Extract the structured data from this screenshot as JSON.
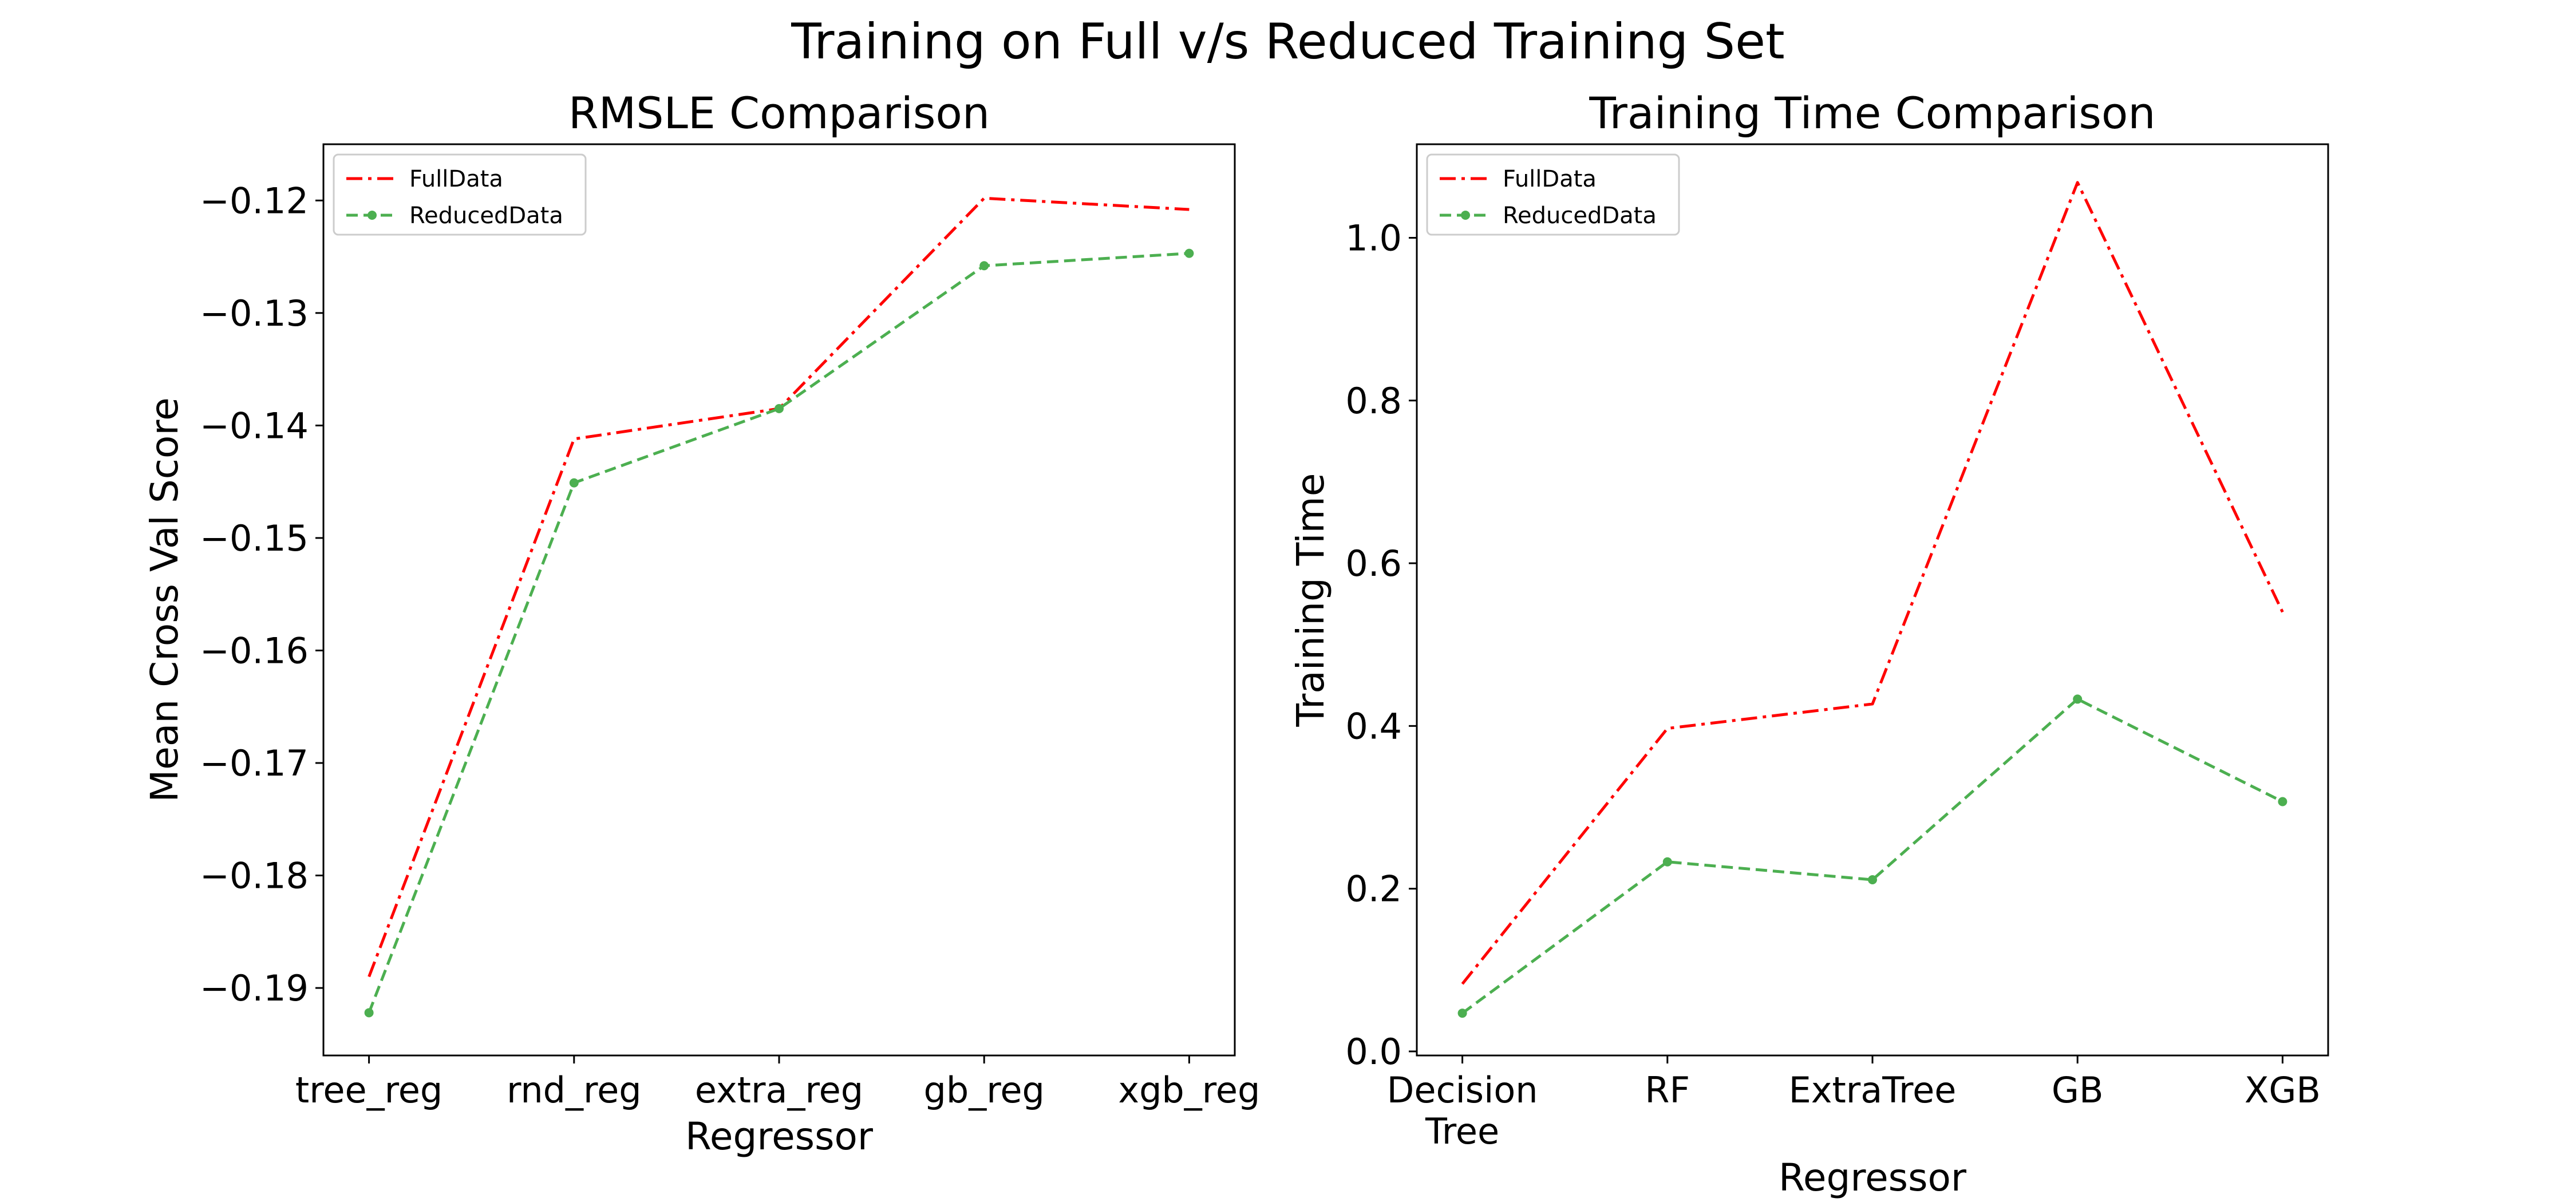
{
  "figure": {
    "suptitle": "Training on Full v/s Reduced Training Set"
  },
  "chart_data": [
    {
      "type": "line",
      "title": "RMSLE Comparison",
      "xlabel": "Regressor",
      "ylabel": "Mean Cross Val Score",
      "categories": [
        "tree_reg",
        "rnd_reg",
        "extra_reg",
        "gb_reg",
        "xgb_reg"
      ],
      "ylim": [
        -0.196,
        -0.115
      ],
      "yticks": [
        -0.19,
        -0.18,
        -0.17,
        -0.16,
        -0.15,
        -0.14,
        -0.13,
        -0.12
      ],
      "ytick_labels": [
        "−0.19",
        "−0.18",
        "−0.17",
        "−0.16",
        "−0.15",
        "−0.14",
        "−0.13",
        "−0.12"
      ],
      "grid": false,
      "legend_position": "upper-left",
      "series": [
        {
          "name": "FullData",
          "values": [
            -0.189,
            -0.1412,
            -0.1385,
            -0.1198,
            -0.1208
          ],
          "color": "#ff0000",
          "style": "dash-dot",
          "markers": false
        },
        {
          "name": "ReducedData",
          "values": [
            -0.1922,
            -0.1451,
            -0.1385,
            -0.1258,
            -0.1247
          ],
          "color": "#4caf50",
          "style": "dashed",
          "markers": true
        }
      ]
    },
    {
      "type": "line",
      "title": "Training Time Comparison",
      "xlabel": "Regressor",
      "ylabel": "Training Time",
      "categories": [
        "Decision\nTree",
        "RF",
        "ExtraTree",
        "GB",
        "XGB"
      ],
      "ylim": [
        -0.005,
        1.115
      ],
      "yticks": [
        0.0,
        0.2,
        0.4,
        0.6,
        0.8,
        1.0
      ],
      "ytick_labels": [
        "0.0",
        "0.2",
        "0.4",
        "0.6",
        "0.8",
        "1.0"
      ],
      "grid": false,
      "legend_position": "upper-left",
      "series": [
        {
          "name": "FullData",
          "values": [
            0.083,
            0.397,
            0.427,
            1.068,
            0.54
          ],
          "color": "#ff0000",
          "style": "dash-dot",
          "markers": false
        },
        {
          "name": "ReducedData",
          "values": [
            0.047,
            0.233,
            0.211,
            0.433,
            0.307
          ],
          "color": "#4caf50",
          "style": "dashed",
          "markers": true
        }
      ]
    }
  ]
}
